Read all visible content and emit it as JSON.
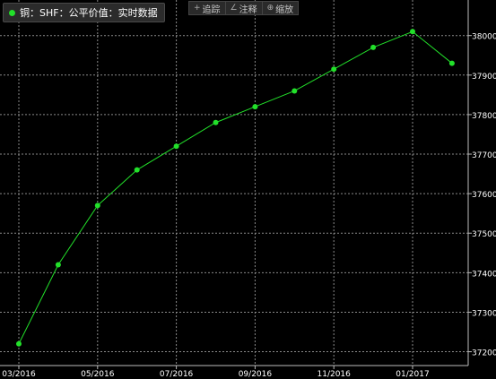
{
  "legend": {
    "label": "铜：SHF：公平价值：实时数据",
    "color": "#22e02a"
  },
  "toolbar": {
    "items": [
      {
        "icon": "crosshair-icon",
        "glyph": "+",
        "label": "追踪"
      },
      {
        "icon": "pencil-icon",
        "glyph": "∠",
        "label": "注释"
      },
      {
        "icon": "zoom-icon",
        "glyph": "⊕",
        "label": "缩放"
      }
    ]
  },
  "chart_data": {
    "type": "line",
    "title": "",
    "xlabel": "",
    "ylabel": "",
    "x_tick_labels": [
      "03/2016",
      "05/2016",
      "07/2016",
      "09/2016",
      "11/2016",
      "01/2017"
    ],
    "y_tick_labels": [
      "37200",
      "37300",
      "37400",
      "37500",
      "37600",
      "37700",
      "37800",
      "37900",
      "38000"
    ],
    "ylim": [
      37165,
      38090
    ],
    "grid": true,
    "series": [
      {
        "name": "铜：SHF：公平价值：实时数据",
        "color": "#22e02a",
        "x": [
          "2016-03",
          "2016-04",
          "2016-05",
          "2016-06",
          "2016-07",
          "2016-08",
          "2016-09",
          "2016-10",
          "2016-11",
          "2016-12",
          "2017-01",
          "2017-02"
        ],
        "y": [
          37220,
          37420,
          37570,
          37660,
          37720,
          37780,
          37820,
          37860,
          37915,
          37970,
          38010,
          37930
        ]
      }
    ]
  }
}
